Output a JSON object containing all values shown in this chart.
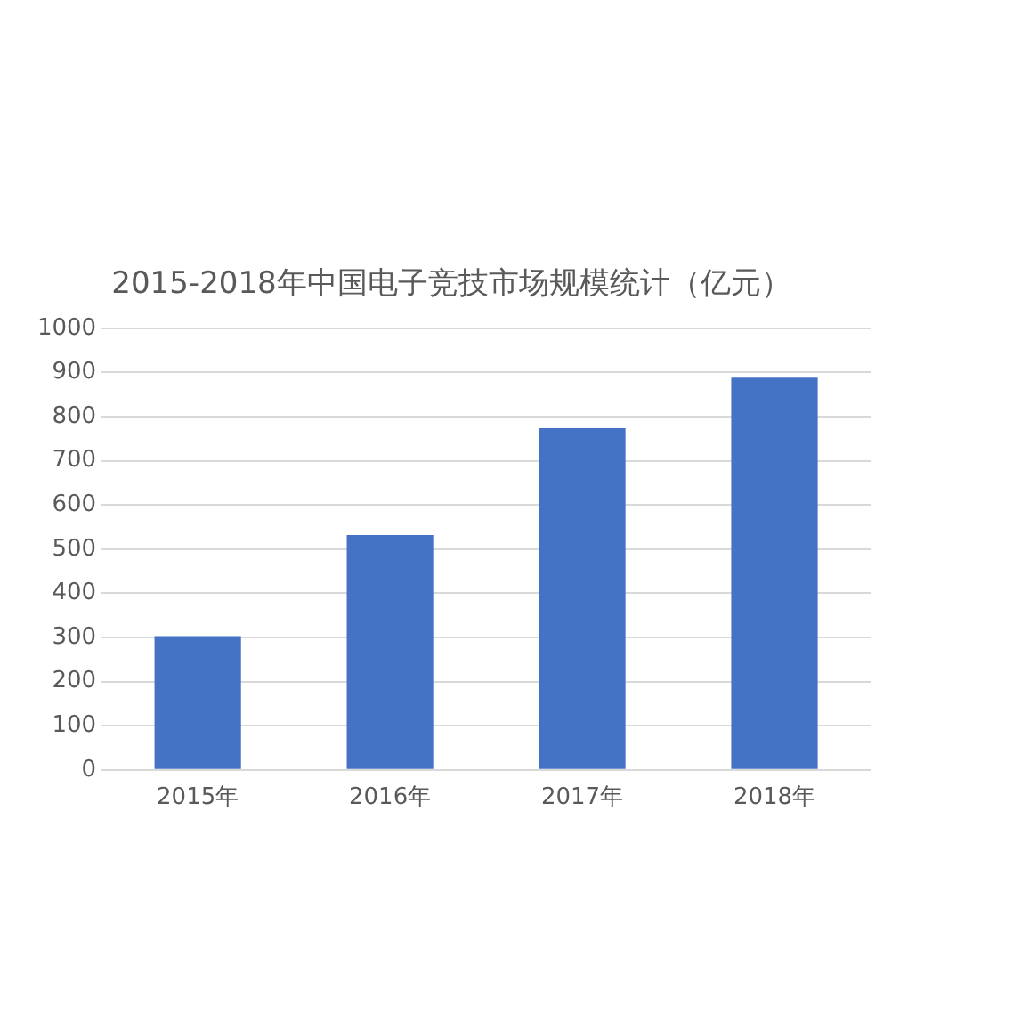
{
  "chart_data": {
    "type": "bar",
    "title": "2015-2018年中国电子竞技市场规模统计（亿元）",
    "categories": [
      "2015年",
      "2016年",
      "2017年",
      "2018年"
    ],
    "values": [
      303,
      532,
      774,
      888
    ],
    "color": "#4472c4",
    "ylim": [
      0,
      1000
    ],
    "yticks": [
      0,
      100,
      200,
      300,
      400,
      500,
      600,
      700,
      800,
      900,
      1000
    ],
    "grid": "y"
  }
}
